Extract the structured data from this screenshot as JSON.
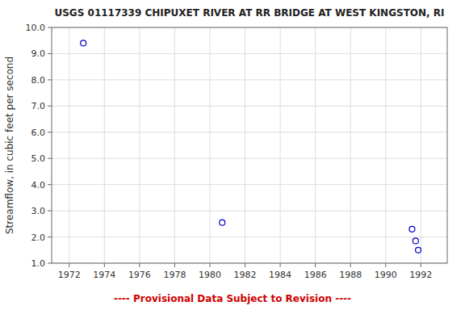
{
  "chart_data": {
    "type": "scatter",
    "title": "USGS 01117339 CHIPUXET RIVER AT RR BRIDGE AT WEST KINGSTON, RI",
    "y_label": "Streamflow, in cubic feet per second",
    "annotation": "---- Provisional Data Subject to Revision ----",
    "x": [
      1972.8,
      1980.7,
      1991.5,
      1991.7,
      1991.85
    ],
    "values": [
      9.4,
      2.55,
      2.3,
      1.85,
      1.5
    ],
    "color": "#0000CC",
    "marker": "circle",
    "xlim": [
      1971.0,
      1993.5
    ],
    "ylim": [
      1.0,
      10.0
    ],
    "xticks": [
      1972,
      1974,
      1976,
      1978,
      1980,
      1982,
      1984,
      1986,
      1988,
      1990,
      1992
    ],
    "yticks": [
      {
        "value": 1.0,
        "label": "1.0"
      },
      {
        "value": 2.0,
        "label": "2.0"
      },
      {
        "value": 3.0,
        "label": "3.0"
      },
      {
        "value": 4.0,
        "label": "4.0"
      },
      {
        "value": 5.0,
        "label": "5.0"
      },
      {
        "value": 6.0,
        "label": "6.0"
      },
      {
        "value": 7.0,
        "label": "7.0"
      },
      {
        "value": 8.0,
        "label": "8.0"
      },
      {
        "value": 9.0,
        "label": "9.0"
      },
      {
        "value": 10.0,
        "label": "10.0"
      }
    ],
    "grid": true
  }
}
